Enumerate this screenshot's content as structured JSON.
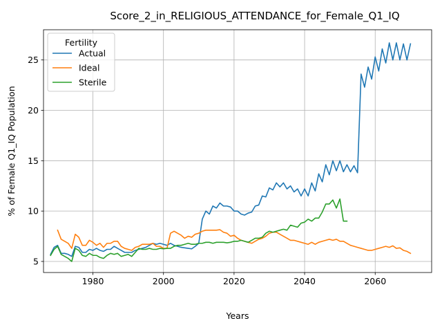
{
  "chart_data": {
    "type": "line",
    "title": "Score_2_in_RELIGIOUS_ATTENDANCE_for_Female_Q1_IQ",
    "xlabel": "Years",
    "ylabel": "% of Female Q1_IQ Population",
    "xlim": [
      1966,
      2076
    ],
    "ylim": [
      3.9,
      28.0
    ],
    "xticks": [
      1980,
      2000,
      2020,
      2040,
      2060
    ],
    "yticks": [
      5,
      10,
      15,
      20,
      25
    ],
    "grid": true,
    "legend": {
      "title": "Fertility",
      "placement": "top-left"
    },
    "series": [
      {
        "name": "Actual",
        "color": "#1f77b4",
        "x": [
          1968,
          1969,
          1970,
          1971,
          1972,
          1973,
          1974,
          1975,
          1976,
          1977,
          1978,
          1979,
          1980,
          1981,
          1982,
          1983,
          1984,
          1985,
          1986,
          1987,
          1988,
          1989,
          1990,
          1991,
          1992,
          1993,
          1994,
          1995,
          1996,
          1997,
          1998,
          1999,
          2000,
          2001,
          2002,
          2003,
          2004,
          2005,
          2006,
          2007,
          2008,
          2009,
          2010,
          2011,
          2012,
          2013,
          2014,
          2015,
          2016,
          2017,
          2018,
          2019,
          2020,
          2021,
          2022,
          2023,
          2024,
          2025,
          2026,
          2027,
          2028,
          2029,
          2030,
          2031,
          2032,
          2033,
          2034,
          2035,
          2036,
          2037,
          2038,
          2039,
          2040,
          2041,
          2042,
          2043,
          2044,
          2045,
          2046,
          2047,
          2048,
          2049,
          2050,
          2051,
          2052,
          2053,
          2054,
          2055,
          2056,
          2057,
          2058,
          2059,
          2060,
          2061,
          2062,
          2063,
          2064,
          2065,
          2066,
          2067,
          2068,
          2069,
          2070
        ],
        "values": [
          5.7,
          6.4,
          6.6,
          5.8,
          5.8,
          5.7,
          5.5,
          6.5,
          6.4,
          5.9,
          5.9,
          6.2,
          6.1,
          6.3,
          6.1,
          6.0,
          6.2,
          6.2,
          6.5,
          6.3,
          6.1,
          5.9,
          5.9,
          5.9,
          6.1,
          6.2,
          6.3,
          6.4,
          6.6,
          6.8,
          6.7,
          6.8,
          6.7,
          6.6,
          6.8,
          6.6,
          6.5,
          6.4,
          6.35,
          6.3,
          6.25,
          6.5,
          6.8,
          9.2,
          10.0,
          9.7,
          10.5,
          10.3,
          10.8,
          10.5,
          10.5,
          10.4,
          10.0,
          10.0,
          9.7,
          9.6,
          9.8,
          9.9,
          10.5,
          10.6,
          11.5,
          11.4,
          12.3,
          12.1,
          12.8,
          12.4,
          12.8,
          12.2,
          12.5,
          11.9,
          12.2,
          11.5,
          12.2,
          11.5,
          12.8,
          12.0,
          13.7,
          12.9,
          14.6,
          13.6,
          15.0,
          14.0,
          15.0,
          13.9,
          14.6,
          13.9,
          14.5,
          13.8,
          23.6,
          22.3,
          24.3,
          23.1,
          25.3,
          23.9,
          26.1,
          24.7,
          26.7,
          25.0,
          26.7,
          25.0,
          26.6,
          25.0,
          26.6
        ]
      },
      {
        "name": "Ideal",
        "color": "#ff7f0e",
        "x": [
          1970,
          1971,
          1972,
          1973,
          1974,
          1975,
          1976,
          1977,
          1978,
          1979,
          1980,
          1981,
          1982,
          1983,
          1984,
          1985,
          1986,
          1987,
          1988,
          1989,
          1990,
          1991,
          1992,
          1993,
          1994,
          1995,
          1996,
          1997,
          1998,
          1999,
          2000,
          2001,
          2002,
          2003,
          2004,
          2005,
          2006,
          2007,
          2008,
          2009,
          2010,
          2011,
          2012,
          2013,
          2014,
          2015,
          2016,
          2017,
          2018,
          2019,
          2020,
          2021,
          2022,
          2023,
          2024,
          2025,
          2026,
          2027,
          2028,
          2029,
          2030,
          2031,
          2032,
          2033,
          2034,
          2035,
          2036,
          2037,
          2038,
          2039,
          2040,
          2041,
          2042,
          2043,
          2044,
          2045,
          2046,
          2047,
          2048,
          2049,
          2050,
          2051,
          2052,
          2053,
          2054,
          2055,
          2056,
          2057,
          2058,
          2059,
          2060,
          2061,
          2062,
          2063,
          2064,
          2065,
          2066,
          2067,
          2068,
          2069,
          2070
        ],
        "values": [
          8.1,
          7.2,
          7.0,
          6.8,
          6.3,
          7.7,
          7.4,
          6.6,
          6.6,
          7.1,
          6.9,
          6.6,
          6.8,
          6.4,
          6.8,
          6.8,
          7.0,
          7.0,
          6.5,
          6.3,
          6.2,
          6.1,
          6.4,
          6.5,
          6.7,
          6.7,
          6.7,
          6.8,
          6.5,
          6.5,
          6.3,
          6.3,
          7.8,
          8.0,
          7.8,
          7.6,
          7.3,
          7.5,
          7.4,
          7.7,
          7.8,
          8.0,
          8.1,
          8.1,
          8.1,
          8.1,
          8.15,
          7.9,
          7.8,
          7.5,
          7.6,
          7.3,
          7.1,
          7.0,
          6.9,
          6.8,
          7.0,
          7.2,
          7.3,
          7.5,
          7.8,
          7.9,
          7.9,
          7.7,
          7.5,
          7.3,
          7.1,
          7.1,
          7.0,
          6.9,
          6.8,
          6.7,
          6.9,
          6.7,
          6.9,
          7.0,
          7.1,
          7.2,
          7.1,
          7.2,
          7.0,
          7.0,
          6.8,
          6.6,
          6.5,
          6.4,
          6.3,
          6.2,
          6.1,
          6.1,
          6.2,
          6.3,
          6.4,
          6.5,
          6.4,
          6.55,
          6.3,
          6.35,
          6.1,
          6.0,
          5.8
        ]
      },
      {
        "name": "Sterile",
        "color": "#2ca02c",
        "x": [
          1968,
          1969,
          1970,
          1971,
          1972,
          1973,
          1974,
          1975,
          1976,
          1977,
          1978,
          1979,
          1980,
          1981,
          1982,
          1983,
          1984,
          1985,
          1986,
          1987,
          1988,
          1989,
          1990,
          1991,
          1992,
          1993,
          1994,
          1995,
          1996,
          1997,
          1998,
          1999,
          2000,
          2001,
          2002,
          2003,
          2004,
          2005,
          2006,
          2007,
          2008,
          2009,
          2010,
          2011,
          2012,
          2013,
          2014,
          2015,
          2016,
          2017,
          2018,
          2019,
          2020,
          2021,
          2022,
          2023,
          2024,
          2025,
          2026,
          2027,
          2028,
          2029,
          2030,
          2031,
          2032,
          2033,
          2034,
          2035,
          2036,
          2037,
          2038,
          2039,
          2040,
          2041,
          2042,
          2043,
          2044,
          2045,
          2046,
          2047,
          2048,
          2049,
          2050,
          2051,
          2052
        ],
        "values": [
          5.6,
          6.2,
          6.5,
          5.7,
          5.5,
          5.3,
          5.0,
          6.3,
          6.1,
          5.6,
          5.5,
          5.8,
          5.6,
          5.6,
          5.4,
          5.3,
          5.6,
          5.8,
          5.7,
          5.8,
          5.5,
          5.6,
          5.7,
          5.5,
          5.9,
          6.3,
          6.2,
          6.2,
          6.3,
          6.2,
          6.2,
          6.3,
          6.25,
          6.3,
          6.3,
          6.5,
          6.6,
          6.6,
          6.7,
          6.8,
          6.7,
          6.7,
          6.8,
          6.8,
          6.9,
          6.9,
          6.8,
          6.9,
          6.9,
          6.9,
          6.85,
          6.9,
          7.0,
          7.0,
          7.1,
          7.0,
          6.9,
          7.1,
          7.3,
          7.3,
          7.4,
          7.8,
          8.0,
          7.9,
          8.0,
          8.1,
          8.2,
          8.1,
          8.6,
          8.5,
          8.4,
          8.8,
          8.9,
          9.2,
          9.0,
          9.3,
          9.3,
          9.9,
          10.7,
          10.7,
          11.1,
          10.3,
          11.2,
          9.0,
          9.0
        ]
      }
    ]
  }
}
